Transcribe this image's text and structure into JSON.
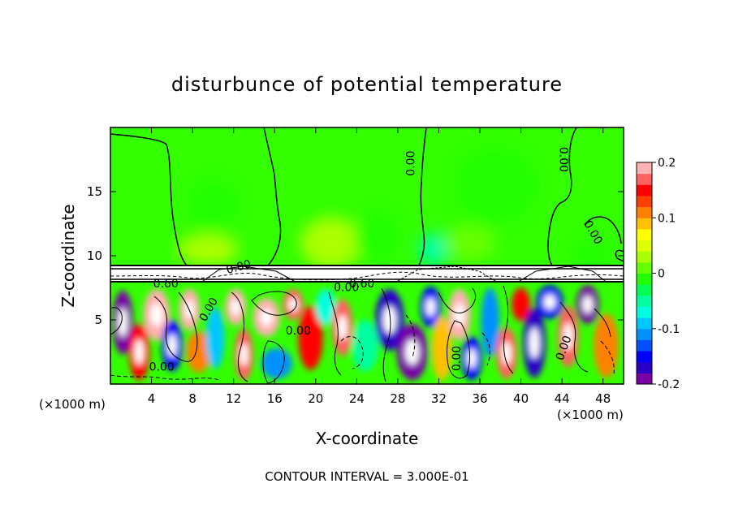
{
  "chart_data": {
    "type": "heatmap",
    "title": "disturbunce of potential temperature",
    "xlabel": "X-coordinate",
    "ylabel": "Z-coordinate",
    "x_unit_left": "(×1000 m)",
    "x_unit_right": "(×1000 m)",
    "footer": "CONTOUR INTERVAL = 3.000E-01",
    "xlim": [
      0,
      50
    ],
    "ylim": [
      0,
      20
    ],
    "xticks": [
      4,
      8,
      12,
      16,
      20,
      24,
      28,
      32,
      36,
      40,
      44,
      48
    ],
    "xtick_labels": [
      "4",
      "8",
      "12",
      "16",
      "20",
      "24",
      "28",
      "32",
      "36",
      "40",
      "44",
      "48"
    ],
    "yticks": [
      5,
      10,
      15
    ],
    "ytick_labels": [
      "5",
      "10",
      "15"
    ],
    "colorbar": {
      "range": [
        -0.2,
        0.2
      ],
      "ticks": [
        -0.2,
        -0.1,
        0,
        0.1,
        0.2
      ],
      "tick_labels": [
        "-0.2",
        "-0.1",
        "0",
        "0.1",
        "0.2"
      ],
      "colors": [
        "#7a00a8",
        "#2a00c8",
        "#0000ff",
        "#0050ff",
        "#0090ff",
        "#00c8ff",
        "#00ffe0",
        "#00ffa0",
        "#00ff50",
        "#22ff00",
        "#66ff00",
        "#aaff00",
        "#ddff00",
        "#ffff00",
        "#ffc000",
        "#ff8000",
        "#ff4000",
        "#ff0000",
        "#ff6060",
        "#ffb0b0"
      ]
    },
    "contour_labels": [
      {
        "text": "0.00",
        "x": 29.3,
        "z": 17.2,
        "rotate": -90
      },
      {
        "text": "0.00",
        "x": 44.1,
        "z": 17.5,
        "rotate": 90
      },
      {
        "text": "0.00",
        "x": 47.0,
        "z": 11.8,
        "rotate": 60
      },
      {
        "text": "0.00",
        "x": 12.5,
        "z": 9.1,
        "rotate": -15
      },
      {
        "text": "0.60",
        "x": 5.4,
        "z": 7.8,
        "rotate": 0
      },
      {
        "text": "0.60",
        "x": 24.5,
        "z": 7.8,
        "rotate": 0
      },
      {
        "text": "0.00",
        "x": 23.0,
        "z": 7.5,
        "rotate": 0
      },
      {
        "text": "0.00",
        "x": 9.6,
        "z": 5.8,
        "rotate": -60
      },
      {
        "text": "0.00",
        "x": 18.3,
        "z": 4.1,
        "rotate": 0
      },
      {
        "text": "0.00",
        "x": 33.8,
        "z": 2.0,
        "rotate": -90
      },
      {
        "text": "0.00",
        "x": 44.2,
        "z": 2.8,
        "rotate": -70
      },
      {
        "text": "0.00",
        "x": 5.0,
        "z": 1.3,
        "rotate": 0
      }
    ],
    "anomaly_cells": [
      {
        "x": 1.2,
        "z": 4.8,
        "v": -0.2,
        "rx": 1.0,
        "rz": 2.5
      },
      {
        "x": 2.8,
        "z": 2.5,
        "v": 0.15,
        "rx": 1.0,
        "rz": 2.2
      },
      {
        "x": 4.5,
        "z": 5.4,
        "v": 0.18,
        "rx": 1.3,
        "rz": 2.0
      },
      {
        "x": 6.0,
        "z": 3.0,
        "v": -0.15,
        "rx": 1.0,
        "rz": 2.0
      },
      {
        "x": 7.7,
        "z": 5.8,
        "v": 0.2,
        "rx": 1.0,
        "rz": 1.6
      },
      {
        "x": 8.6,
        "z": 2.5,
        "v": 0.12,
        "rx": 1.2,
        "rz": 1.6
      },
      {
        "x": 10.2,
        "z": 3.6,
        "v": -0.1,
        "rx": 0.9,
        "rz": 2.4
      },
      {
        "x": 12.2,
        "z": 6.0,
        "v": 0.2,
        "rx": 1.0,
        "rz": 1.4
      },
      {
        "x": 13.0,
        "z": 2.3,
        "v": 0.17,
        "rx": 0.9,
        "rz": 2.0
      },
      {
        "x": 15.2,
        "z": 5.2,
        "v": 0.19,
        "rx": 1.3,
        "rz": 1.5
      },
      {
        "x": 16.2,
        "z": 1.6,
        "v": -0.12,
        "rx": 1.5,
        "rz": 1.2
      },
      {
        "x": 17.8,
        "z": 6.2,
        "v": 0.16,
        "rx": 1.0,
        "rz": 1.2
      },
      {
        "x": 19.5,
        "z": 3.6,
        "v": 0.14,
        "rx": 1.2,
        "rz": 2.5
      },
      {
        "x": 21.0,
        "z": 6.0,
        "v": -0.08,
        "rx": 1.0,
        "rz": 1.4
      },
      {
        "x": 22.6,
        "z": 4.4,
        "v": 0.17,
        "rx": 1.0,
        "rz": 2.2
      },
      {
        "x": 24.8,
        "z": 3.0,
        "v": -0.05,
        "rx": 1.3,
        "rz": 2.0
      },
      {
        "x": 27.2,
        "z": 5.0,
        "v": -0.18,
        "rx": 1.4,
        "rz": 2.4
      },
      {
        "x": 29.4,
        "z": 2.5,
        "v": -0.2,
        "rx": 1.5,
        "rz": 2.2
      },
      {
        "x": 31.2,
        "z": 6.0,
        "v": -0.15,
        "rx": 1.0,
        "rz": 1.6
      },
      {
        "x": 32.3,
        "z": 2.8,
        "v": 0.08,
        "rx": 1.0,
        "rz": 2.5
      },
      {
        "x": 34.0,
        "z": 5.4,
        "v": 0.18,
        "rx": 1.1,
        "rz": 2.0
      },
      {
        "x": 35.2,
        "z": 2.0,
        "v": -0.15,
        "rx": 1.0,
        "rz": 1.7
      },
      {
        "x": 37.0,
        "z": 4.8,
        "v": -0.12,
        "rx": 0.9,
        "rz": 2.7
      },
      {
        "x": 38.6,
        "z": 2.4,
        "v": 0.16,
        "rx": 1.0,
        "rz": 2.0
      },
      {
        "x": 40.0,
        "z": 6.2,
        "v": 0.14,
        "rx": 0.9,
        "rz": 1.3
      },
      {
        "x": 41.3,
        "z": 3.2,
        "v": -0.18,
        "rx": 1.1,
        "rz": 2.7
      },
      {
        "x": 42.8,
        "z": 6.4,
        "v": -0.16,
        "rx": 1.3,
        "rz": 1.3
      },
      {
        "x": 44.6,
        "z": 3.7,
        "v": 0.16,
        "rx": 1.0,
        "rz": 2.4
      },
      {
        "x": 46.5,
        "z": 6.2,
        "v": -0.19,
        "rx": 1.1,
        "rz": 1.5
      },
      {
        "x": 48.3,
        "z": 3.0,
        "v": 0.12,
        "rx": 1.2,
        "rz": 2.5
      }
    ],
    "upper_cells": [
      {
        "x": 9.5,
        "z": 10.5,
        "v": 0.03,
        "rx": 3.0,
        "rz": 1.2
      },
      {
        "x": 21.5,
        "z": 11.0,
        "v": 0.035,
        "rx": 3.0,
        "rz": 2.0
      },
      {
        "x": 26.0,
        "z": 11.5,
        "v": -0.02,
        "rx": 2.2,
        "rz": 2.0
      },
      {
        "x": 31.5,
        "z": 10.5,
        "v": -0.04,
        "rx": 1.5,
        "rz": 1.3
      },
      {
        "x": 35.0,
        "z": 11.0,
        "v": 0.02,
        "rx": 2.5,
        "rz": 1.4
      },
      {
        "x": 10.0,
        "z": 14.0,
        "v": -0.02,
        "rx": 2.5,
        "rz": 2.0
      },
      {
        "x": 37.5,
        "z": 15.5,
        "v": -0.015,
        "rx": 4.0,
        "rz": 3.0
      },
      {
        "x": 47.0,
        "z": 10.0,
        "v": -0.02,
        "rx": 2.0,
        "rz": 1.2
      }
    ]
  }
}
